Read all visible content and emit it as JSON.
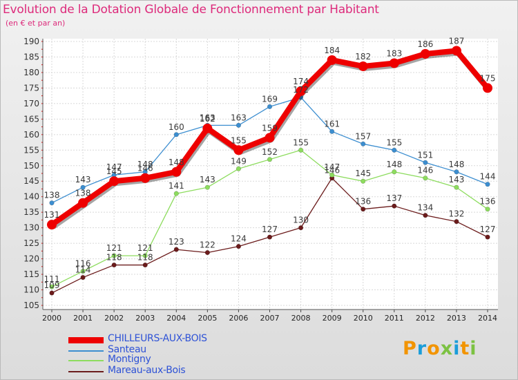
{
  "title": "Evolution de la Dotation Globale de Fonctionnement par Habitant",
  "subtitle": "(en € et par an)",
  "logo": {
    "text": "Proxiti",
    "colors": [
      "#f29400",
      "#1b9dd9",
      "#f29400",
      "#7cc242",
      "#1b9dd9",
      "#f29400",
      "#7cc242"
    ]
  },
  "chart_data": {
    "type": "line",
    "title": "Evolution de la Dotation Globale de Fonctionnement par Habitant",
    "subtitle": "(en € et par an)",
    "xlabel": "",
    "ylabel": "",
    "x": [
      "2000",
      "2001",
      "2002",
      "2003",
      "2004",
      "2005",
      "2006",
      "2007",
      "2008",
      "2009",
      "2010",
      "2011",
      "2012",
      "2013",
      "2014"
    ],
    "ylim": [
      105,
      190
    ],
    "yticks": [
      105,
      110,
      115,
      120,
      125,
      130,
      135,
      140,
      145,
      150,
      155,
      160,
      165,
      170,
      175,
      180,
      185,
      190
    ],
    "grid": true,
    "legend_position": "bottom-left",
    "series": [
      {
        "name": "CHILLEURS-AUX-BOIS",
        "color": "#ee0000",
        "values": [
          131,
          138,
          145,
          146,
          148,
          162,
          155,
          159,
          174,
          184,
          182,
          183,
          186,
          187,
          175
        ]
      },
      {
        "name": "Santeau",
        "color": "#3c8ed0",
        "values": [
          138,
          143,
          147,
          148,
          160,
          163,
          163,
          169,
          172,
          161,
          157,
          155,
          151,
          148,
          144
        ]
      },
      {
        "name": "Montigny",
        "color": "#8ddc5e",
        "values": [
          111,
          116,
          121,
          121,
          141,
          143,
          149,
          152,
          155,
          147,
          145,
          148,
          146,
          143,
          136
        ]
      },
      {
        "name": "Mareau-aux-Bois",
        "color": "#6b1b1b",
        "values": [
          109,
          114,
          118,
          118,
          123,
          122,
          124,
          127,
          130,
          146,
          136,
          137,
          134,
          132,
          127
        ]
      }
    ]
  }
}
